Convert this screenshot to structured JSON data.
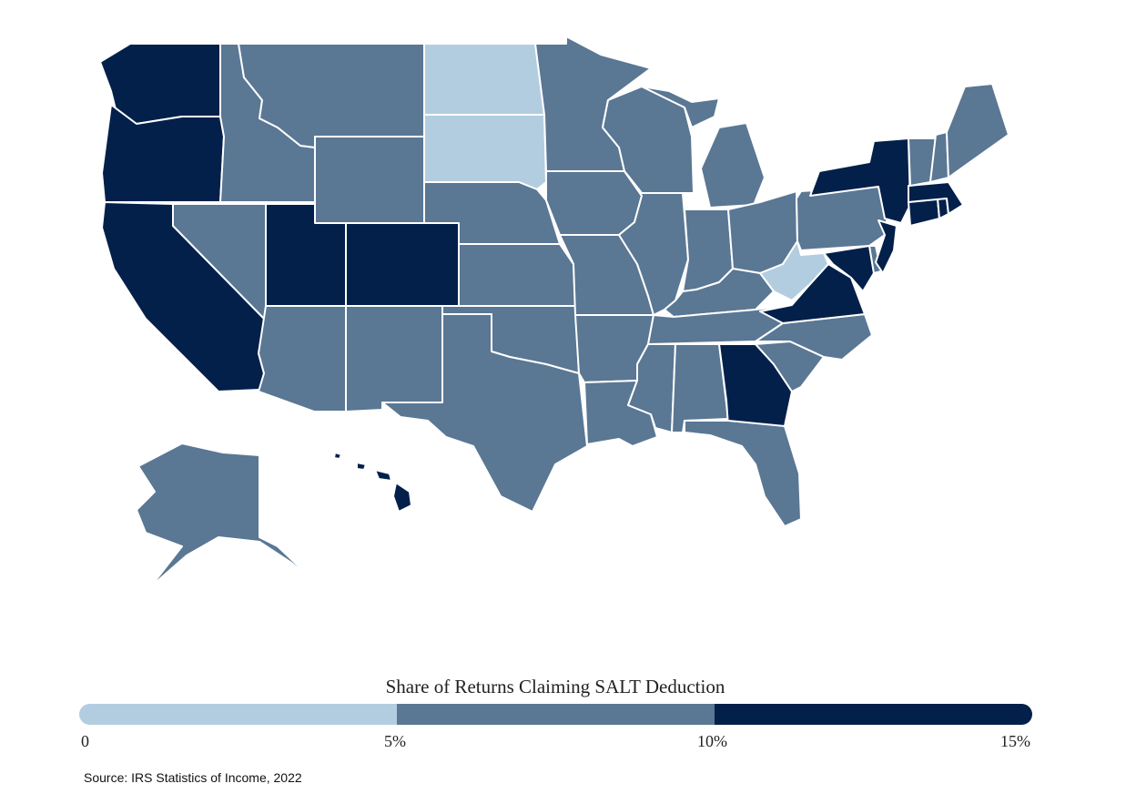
{
  "colors": {
    "0-5%": "#b3cde0",
    "5-10%": "#5a7794",
    "10-15%": "#03204a",
    "state_border": "#ffffff"
  },
  "legend": {
    "title": "Share of Returns Claiming SALT Deduction",
    "ticks": [
      "0",
      "5%",
      "10%",
      "15%"
    ],
    "bins": [
      "0-5%",
      "5-10%",
      "10-15%"
    ]
  },
  "source": "Source: IRS Statistics of Income, 2022",
  "states": {
    "WA": "10-15%",
    "OR": "10-15%",
    "CA": "10-15%",
    "ID": "5-10%",
    "NV": "5-10%",
    "MT": "5-10%",
    "WY": "5-10%",
    "UT": "10-15%",
    "CO": "10-15%",
    "AZ": "5-10%",
    "NM": "5-10%",
    "ND": "0-5%",
    "SD": "0-5%",
    "NE": "5-10%",
    "KS": "5-10%",
    "OK": "5-10%",
    "TX": "5-10%",
    "MN": "5-10%",
    "IA": "5-10%",
    "MO": "5-10%",
    "AR": "5-10%",
    "LA": "5-10%",
    "WI": "5-10%",
    "IL": "5-10%",
    "MI": "5-10%",
    "IN": "5-10%",
    "OH": "5-10%",
    "KY": "5-10%",
    "TN": "5-10%",
    "MS": "5-10%",
    "AL": "5-10%",
    "GA": "10-15%",
    "FL": "5-10%",
    "SC": "5-10%",
    "NC": "5-10%",
    "VA": "10-15%",
    "WV": "0-5%",
    "MD": "10-15%",
    "DE": "5-10%",
    "PA": "5-10%",
    "NJ": "10-15%",
    "NY": "10-15%",
    "CT": "10-15%",
    "RI": "10-15%",
    "MA": "10-15%",
    "VT": "5-10%",
    "NH": "5-10%",
    "ME": "5-10%",
    "AK": "5-10%",
    "HI": "10-15%"
  }
}
